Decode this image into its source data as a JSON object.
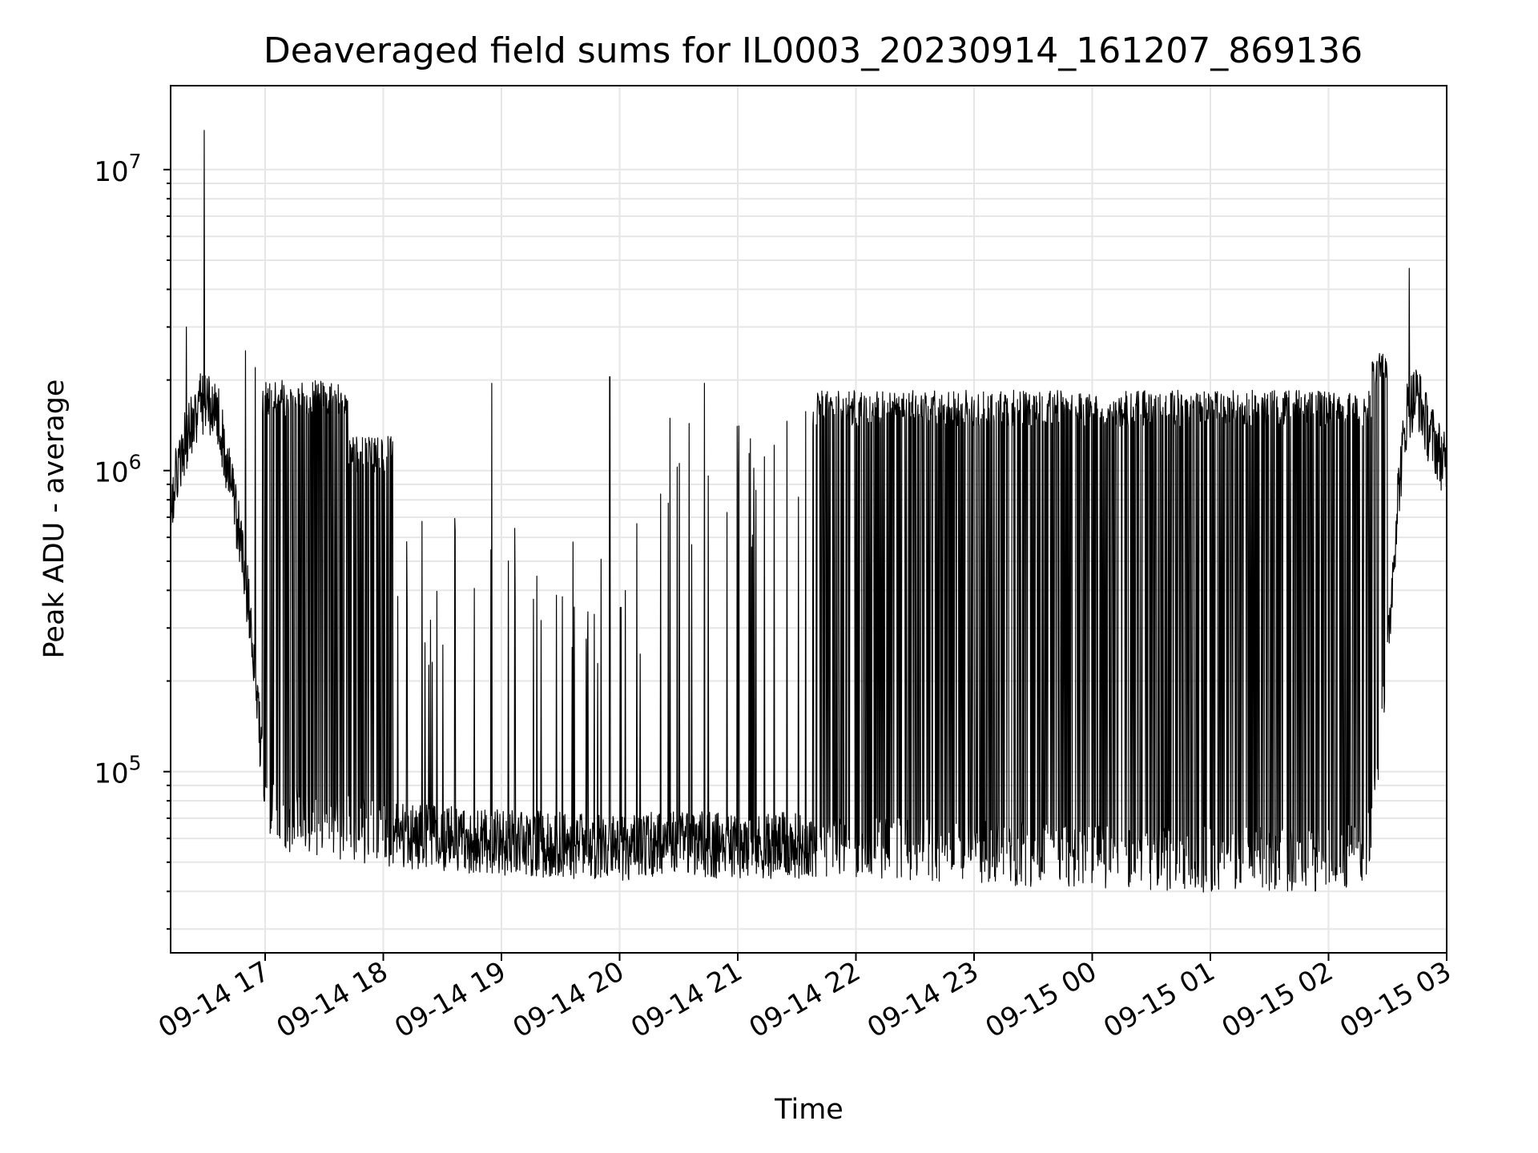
{
  "chart_data": {
    "type": "line",
    "title": "Deaveraged field sums for IL0003_20230914_161207_869136",
    "xlabel": "Time",
    "ylabel": "Peak ADU - average",
    "yscale": "log",
    "grid": true,
    "xlim": [
      "2023-09-14 16:12",
      "2023-09-15 03:00"
    ],
    "ylim": [
      25000,
      19000000
    ],
    "x_ticks": [
      "09-14 17",
      "09-14 18",
      "09-14 19",
      "09-14 20",
      "09-14 21",
      "09-14 22",
      "09-14 23",
      "09-15 00",
      "09-15 01",
      "09-15 02",
      "09-15 03"
    ],
    "y_ticks": [
      {
        "value": 100000,
        "base": "10",
        "exp": "5"
      },
      {
        "value": 1000000,
        "base": "10",
        "exp": "6"
      },
      {
        "value": 10000000,
        "base": "10",
        "exp": "7"
      }
    ],
    "line_color": "#000000",
    "series": [
      {
        "baseline": {
          "x": [
            "2023-09-14 16:12",
            "2023-09-14 16:20",
            "2023-09-14 16:28",
            "2023-09-14 16:36",
            "2023-09-14 16:44",
            "2023-09-14 16:50",
            "2023-09-14 16:55",
            "2023-09-14 17:00",
            "2023-09-14 17:10",
            "2023-09-14 17:20",
            "2023-09-14 17:35",
            "2023-09-14 17:50",
            "2023-09-14 18:00",
            "2023-09-14 18:30",
            "2023-09-14 19:00",
            "2023-09-14 19:30",
            "2023-09-14 20:00",
            "2023-09-14 20:30",
            "2023-09-14 21:00",
            "2023-09-14 21:30",
            "2023-09-14 22:00",
            "2023-09-14 22:30",
            "2023-09-14 23:00",
            "2023-09-14 23:30",
            "2023-09-15 00:00",
            "2023-09-15 00:30",
            "2023-09-15 01:00",
            "2023-09-15 01:30",
            "2023-09-15 02:00",
            "2023-09-15 02:20",
            "2023-09-15 02:30",
            "2023-09-15 02:35",
            "2023-09-15 02:40",
            "2023-09-15 02:45",
            "2023-09-15 02:50",
            "2023-09-15 02:55",
            "2023-09-15 03:00"
          ],
          "y": [
            800000,
            1300000,
            1700000,
            1500000,
            800000,
            450000,
            200000,
            80000,
            70000,
            68000,
            66000,
            64000,
            62000,
            60000,
            58000,
            57000,
            56000,
            58000,
            56000,
            57000,
            56000,
            55000,
            54000,
            53000,
            52000,
            52000,
            51000,
            51000,
            51000,
            55000,
            250000,
            800000,
            1600000,
            1800000,
            1400000,
            1200000,
            1000000
          ]
        },
        "bursts": [
          {
            "start": "2023-09-14 16:58",
            "end": "2023-09-14 17:42",
            "peak": 2000000,
            "density": "dense"
          },
          {
            "start": "2023-09-14 17:42",
            "end": "2023-09-14 18:05",
            "peak": 1300000,
            "density": "dense"
          },
          {
            "start": "2023-09-14 18:05",
            "end": "2023-09-14 20:20",
            "peak": 700000,
            "density": "sparse"
          },
          {
            "start": "2023-09-14 20:20",
            "end": "2023-09-14 21:38",
            "peak": 1600000,
            "density": "sparse"
          },
          {
            "start": "2023-09-14 21:38",
            "end": "2023-09-15 02:22",
            "peak": 1850000,
            "density": "dense"
          },
          {
            "start": "2023-09-15 02:22",
            "end": "2023-09-15 02:30",
            "peak": 2500000,
            "density": "dense"
          }
        ],
        "spikes": [
          {
            "x": "2023-09-14 16:29",
            "y": 13500000
          },
          {
            "x": "2023-09-14 16:20",
            "y": 3000000
          },
          {
            "x": "2023-09-14 16:50",
            "y": 2500000
          },
          {
            "x": "2023-09-14 16:55",
            "y": 2200000
          },
          {
            "x": "2023-09-14 18:55",
            "y": 1950000
          },
          {
            "x": "2023-09-14 19:55",
            "y": 2050000
          },
          {
            "x": "2023-09-14 20:43",
            "y": 1950000
          },
          {
            "x": "2023-09-15 02:41",
            "y": 4700000
          }
        ]
      }
    ]
  }
}
